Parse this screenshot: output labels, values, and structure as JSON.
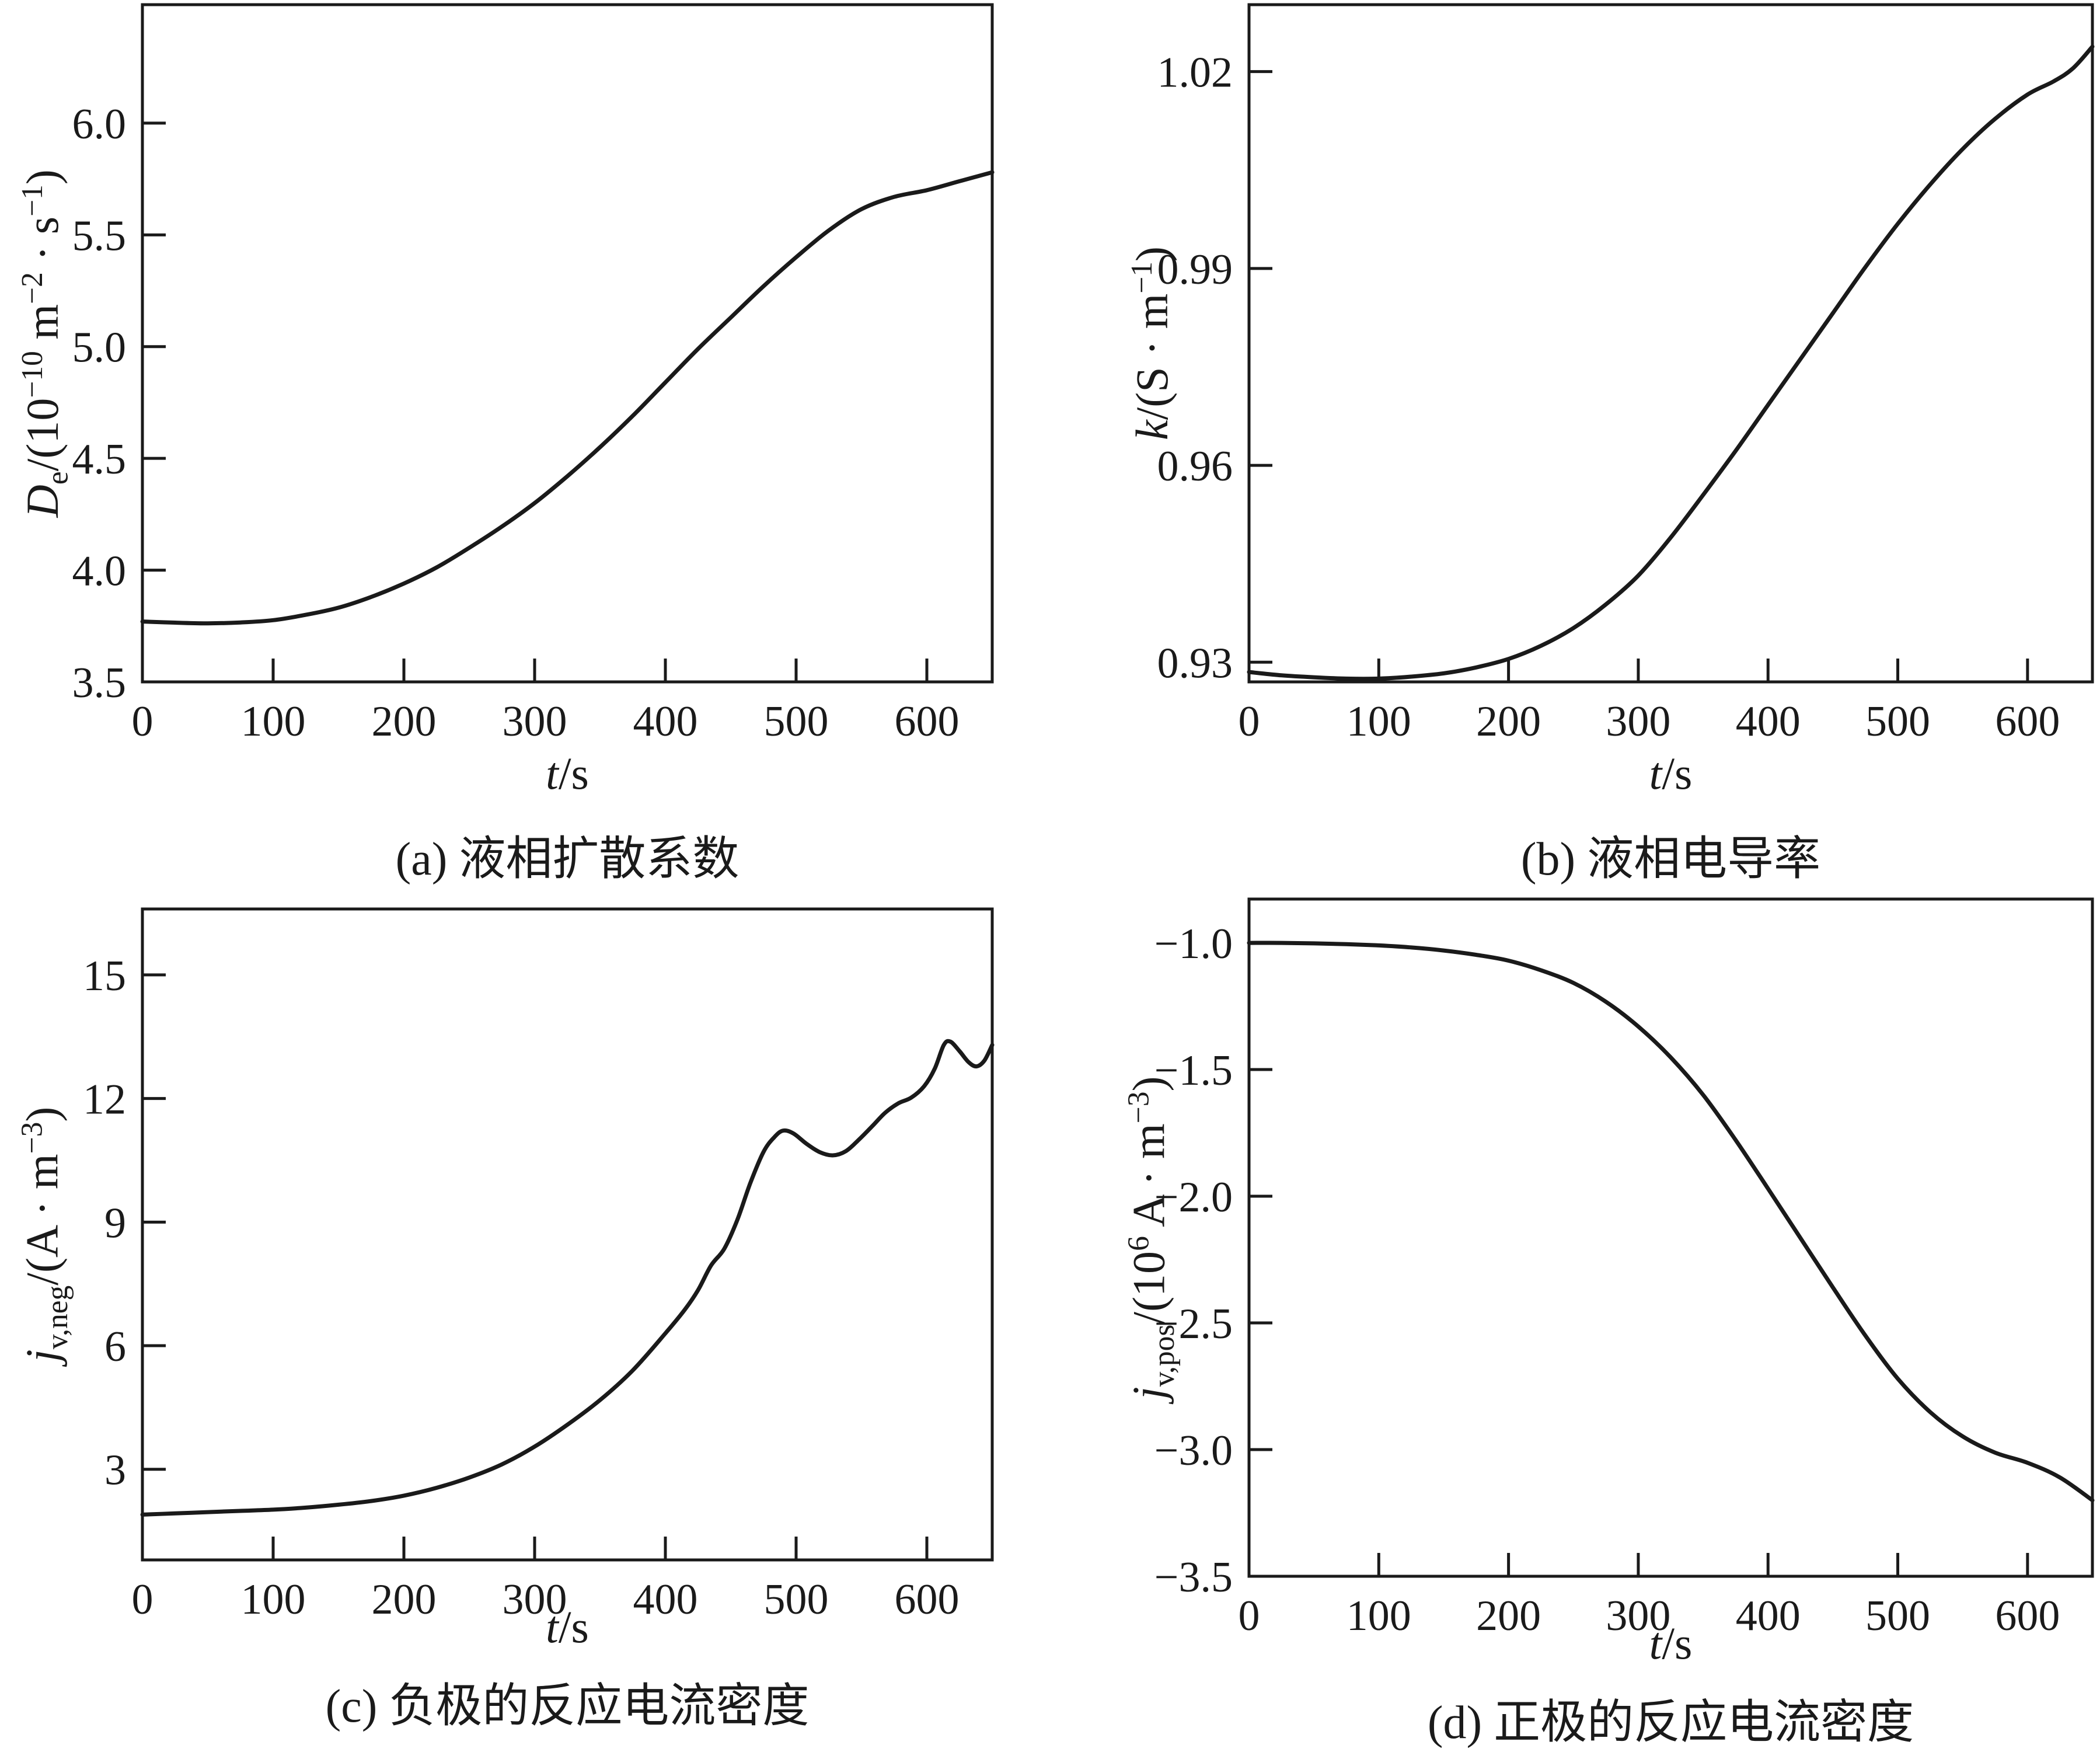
{
  "figure": {
    "background_color": "#ffffff",
    "axis_color": "#1a1a1a",
    "line_color": "#1a1a1a",
    "grid": "off",
    "legend": "none"
  },
  "chart_data": [
    {
      "id": "a",
      "type": "line",
      "caption": "(a) 液相扩散系数",
      "xlabel": "t/s",
      "xlabel_html": "<i>t</i>/s",
      "ylabel": "De/(10⁻¹⁰ m⁻² · s⁻¹)",
      "ylabel_html": "<i>D</i><sub>e</sub>/(10<sup>−10</sup> m<sup>−2</sup> · s<sup>−1</sup>)",
      "xlim": [
        0,
        650
      ],
      "ylim": [
        3.5,
        6.53
      ],
      "xticks": {
        "values": [
          0,
          100,
          200,
          300,
          400,
          500,
          600
        ],
        "labels": [
          "0",
          "100",
          "200",
          "300",
          "400",
          "500",
          "600"
        ]
      },
      "yticks": {
        "values": [
          3.5,
          4.0,
          4.5,
          5.0,
          5.5,
          6.0
        ],
        "labels": [
          "3.5",
          "4.0",
          "4.5",
          "5.0",
          "5.5",
          "6.0"
        ]
      },
      "series": {
        "name": "liquid-phase-diffusion-coefficient",
        "points": [
          [
            0,
            3.77
          ],
          [
            25,
            3.765
          ],
          [
            50,
            3.762
          ],
          [
            75,
            3.766
          ],
          [
            100,
            3.776
          ],
          [
            125,
            3.8
          ],
          [
            150,
            3.832
          ],
          [
            175,
            3.88
          ],
          [
            200,
            3.94
          ],
          [
            225,
            4.012
          ],
          [
            250,
            4.1
          ],
          [
            275,
            4.195
          ],
          [
            300,
            4.3
          ],
          [
            325,
            4.42
          ],
          [
            350,
            4.55
          ],
          [
            375,
            4.69
          ],
          [
            400,
            4.84
          ],
          [
            425,
            4.99
          ],
          [
            450,
            5.13
          ],
          [
            475,
            5.27
          ],
          [
            500,
            5.4
          ],
          [
            525,
            5.52
          ],
          [
            550,
            5.615
          ],
          [
            575,
            5.67
          ],
          [
            600,
            5.7
          ],
          [
            625,
            5.74
          ],
          [
            650,
            5.78
          ]
        ]
      }
    },
    {
      "id": "b",
      "type": "line",
      "caption": "(b) 液相电导率",
      "xlabel": "t/s",
      "xlabel_html": "<i>t</i>/s",
      "ylabel": "k/(S · m⁻¹)",
      "ylabel_html": "<i>k</i>/(S · m<sup>−1</sup>)",
      "xlim": [
        0,
        650
      ],
      "ylim": [
        0.927,
        1.0302
      ],
      "xticks": {
        "values": [
          0,
          100,
          200,
          300,
          400,
          500,
          600
        ],
        "labels": [
          "0",
          "100",
          "200",
          "300",
          "400",
          "500",
          "600"
        ]
      },
      "yticks": {
        "values": [
          0.93,
          0.96,
          0.99,
          1.02
        ],
        "labels": [
          "0.93",
          "0.96",
          "0.99",
          "1.02"
        ]
      },
      "series": {
        "name": "liquid-phase-conductivity",
        "points": [
          [
            0,
            0.9285
          ],
          [
            25,
            0.928
          ],
          [
            50,
            0.9277
          ],
          [
            75,
            0.9275
          ],
          [
            100,
            0.9275
          ],
          [
            125,
            0.9278
          ],
          [
            150,
            0.9283
          ],
          [
            175,
            0.9292
          ],
          [
            200,
            0.9305
          ],
          [
            225,
            0.9325
          ],
          [
            250,
            0.9352
          ],
          [
            275,
            0.9388
          ],
          [
            300,
            0.9432
          ],
          [
            325,
            0.949
          ],
          [
            350,
            0.9555
          ],
          [
            375,
            0.9622
          ],
          [
            400,
            0.9692
          ],
          [
            425,
            0.9762
          ],
          [
            450,
            0.9832
          ],
          [
            475,
            0.9902
          ],
          [
            500,
            0.9968
          ],
          [
            525,
            1.0028
          ],
          [
            550,
            1.0082
          ],
          [
            575,
            1.0128
          ],
          [
            600,
            1.0165
          ],
          [
            620,
            1.0185
          ],
          [
            635,
            1.0205
          ],
          [
            650,
            1.0238
          ]
        ]
      }
    },
    {
      "id": "c",
      "type": "line",
      "caption": "(c) 负极的反应电流密度",
      "xlabel": "t/s",
      "xlabel_html": "<i>t</i>/s",
      "ylabel": "jv,neg/(A · m⁻³)",
      "ylabel_html": "<i>j</i><sub>v,neg</sub>/(A · m<sup>−3</sup>)",
      "xlim": [
        0,
        650
      ],
      "ylim": [
        0.8,
        16.6
      ],
      "xticks": {
        "values": [
          0,
          100,
          200,
          300,
          400,
          500,
          600
        ],
        "labels": [
          "0",
          "100",
          "200",
          "300",
          "400",
          "500",
          "600"
        ]
      },
      "yticks": {
        "values": [
          3,
          6,
          9,
          12,
          15
        ],
        "labels": [
          "3",
          "6",
          "9",
          "12",
          "15"
        ]
      },
      "series": {
        "name": "negative-electrode-reaction-current-density",
        "points": [
          [
            0,
            1.9
          ],
          [
            25,
            1.93
          ],
          [
            50,
            1.96
          ],
          [
            75,
            1.99
          ],
          [
            100,
            2.02
          ],
          [
            125,
            2.07
          ],
          [
            150,
            2.14
          ],
          [
            175,
            2.23
          ],
          [
            200,
            2.36
          ],
          [
            225,
            2.55
          ],
          [
            250,
            2.8
          ],
          [
            275,
            3.12
          ],
          [
            300,
            3.55
          ],
          [
            325,
            4.08
          ],
          [
            350,
            4.68
          ],
          [
            375,
            5.4
          ],
          [
            400,
            6.3
          ],
          [
            415,
            6.88
          ],
          [
            425,
            7.35
          ],
          [
            435,
            7.95
          ],
          [
            445,
            8.35
          ],
          [
            455,
            9.05
          ],
          [
            465,
            9.95
          ],
          [
            475,
            10.7
          ],
          [
            483,
            11.05
          ],
          [
            490,
            11.22
          ],
          [
            498,
            11.15
          ],
          [
            508,
            10.9
          ],
          [
            518,
            10.7
          ],
          [
            528,
            10.62
          ],
          [
            538,
            10.72
          ],
          [
            548,
            11.0
          ],
          [
            558,
            11.32
          ],
          [
            568,
            11.65
          ],
          [
            578,
            11.88
          ],
          [
            588,
            12.02
          ],
          [
            598,
            12.3
          ],
          [
            606,
            12.72
          ],
          [
            613,
            13.3
          ],
          [
            618,
            13.38
          ],
          [
            625,
            13.15
          ],
          [
            632,
            12.88
          ],
          [
            638,
            12.78
          ],
          [
            644,
            12.92
          ],
          [
            650,
            13.3
          ]
        ]
      }
    },
    {
      "id": "d",
      "type": "line",
      "caption": "(d) 正极的反应电流密度",
      "xlabel": "t/s",
      "xlabel_html": "<i>t</i>/s",
      "ylabel": "jv,pos/(10⁶ A · m⁻³)",
      "ylabel_html": "<i>j</i><sub>v,pos</sub>/(10<sup>6</sup> A · m<sup>−3</sup>)",
      "xlim": [
        0,
        650
      ],
      "ylim": [
        -3.5,
        -0.827
      ],
      "xticks": {
        "values": [
          0,
          100,
          200,
          300,
          400,
          500,
          600
        ],
        "labels": [
          "0",
          "100",
          "200",
          "300",
          "400",
          "500",
          "600"
        ]
      },
      "yticks": {
        "values": [
          -3.5,
          -3.0,
          -2.5,
          -2.0,
          -1.5,
          -1.0
        ],
        "labels": [
          "−3.5",
          "−3.0",
          "−2.5",
          "−2.0",
          "−1.5",
          "−1.0"
        ]
      },
      "series": {
        "name": "positive-electrode-reaction-current-density",
        "points": [
          [
            0,
            -1.0
          ],
          [
            25,
            -1.0
          ],
          [
            50,
            -1.002
          ],
          [
            75,
            -1.005
          ],
          [
            100,
            -1.01
          ],
          [
            125,
            -1.018
          ],
          [
            150,
            -1.03
          ],
          [
            175,
            -1.047
          ],
          [
            200,
            -1.07
          ],
          [
            225,
            -1.108
          ],
          [
            250,
            -1.158
          ],
          [
            275,
            -1.232
          ],
          [
            300,
            -1.33
          ],
          [
            325,
            -1.452
          ],
          [
            350,
            -1.6
          ],
          [
            375,
            -1.778
          ],
          [
            400,
            -1.97
          ],
          [
            425,
            -2.165
          ],
          [
            450,
            -2.36
          ],
          [
            475,
            -2.55
          ],
          [
            500,
            -2.72
          ],
          [
            525,
            -2.852
          ],
          [
            550,
            -2.948
          ],
          [
            575,
            -3.012
          ],
          [
            600,
            -3.052
          ],
          [
            625,
            -3.11
          ],
          [
            650,
            -3.2
          ]
        ]
      }
    }
  ]
}
